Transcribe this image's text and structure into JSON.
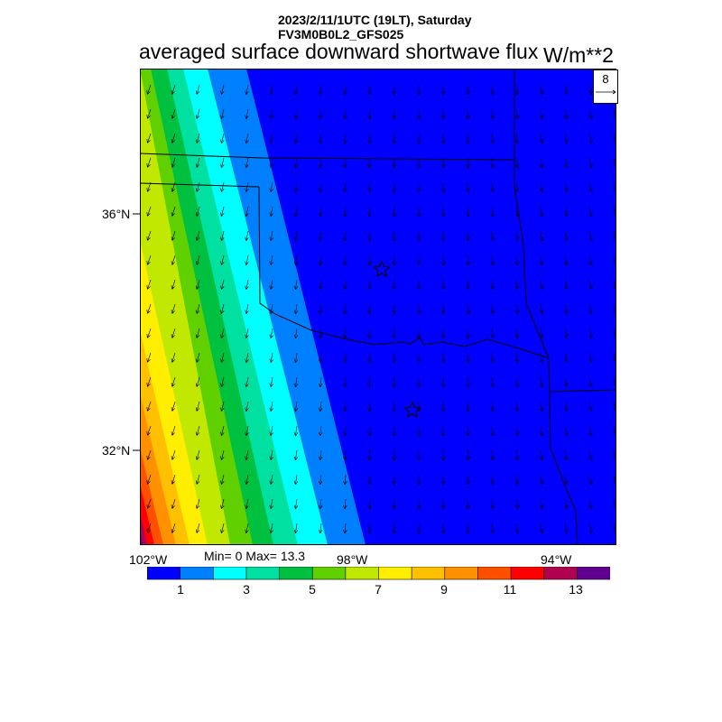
{
  "header": {
    "datetime": "2023/2/11/1UTC (19LT), Saturday",
    "model": "FV3M0B0L2_GFS025"
  },
  "title": "averaged surface downward shortwave flux",
  "units": "W/m**2",
  "reference_vector": {
    "label": "8"
  },
  "map": {
    "lat_ticks": [
      "36°N",
      "32°N"
    ],
    "lon_ticks": [
      "102°W",
      "98°W",
      "94°W"
    ],
    "markers": [
      "star",
      "star"
    ]
  },
  "stats": "Min= 0 Max= 13.3",
  "colorbar": {
    "colors": [
      "#0000ff",
      "#0080ff",
      "#00ffff",
      "#00e0a0",
      "#00c040",
      "#60d000",
      "#c0e800",
      "#ffee00",
      "#ffc000",
      "#ff9000",
      "#ff5000",
      "#ff0000",
      "#b00050",
      "#600090"
    ],
    "labels": [
      "1",
      "3",
      "5",
      "7",
      "9",
      "11",
      "13"
    ]
  }
}
